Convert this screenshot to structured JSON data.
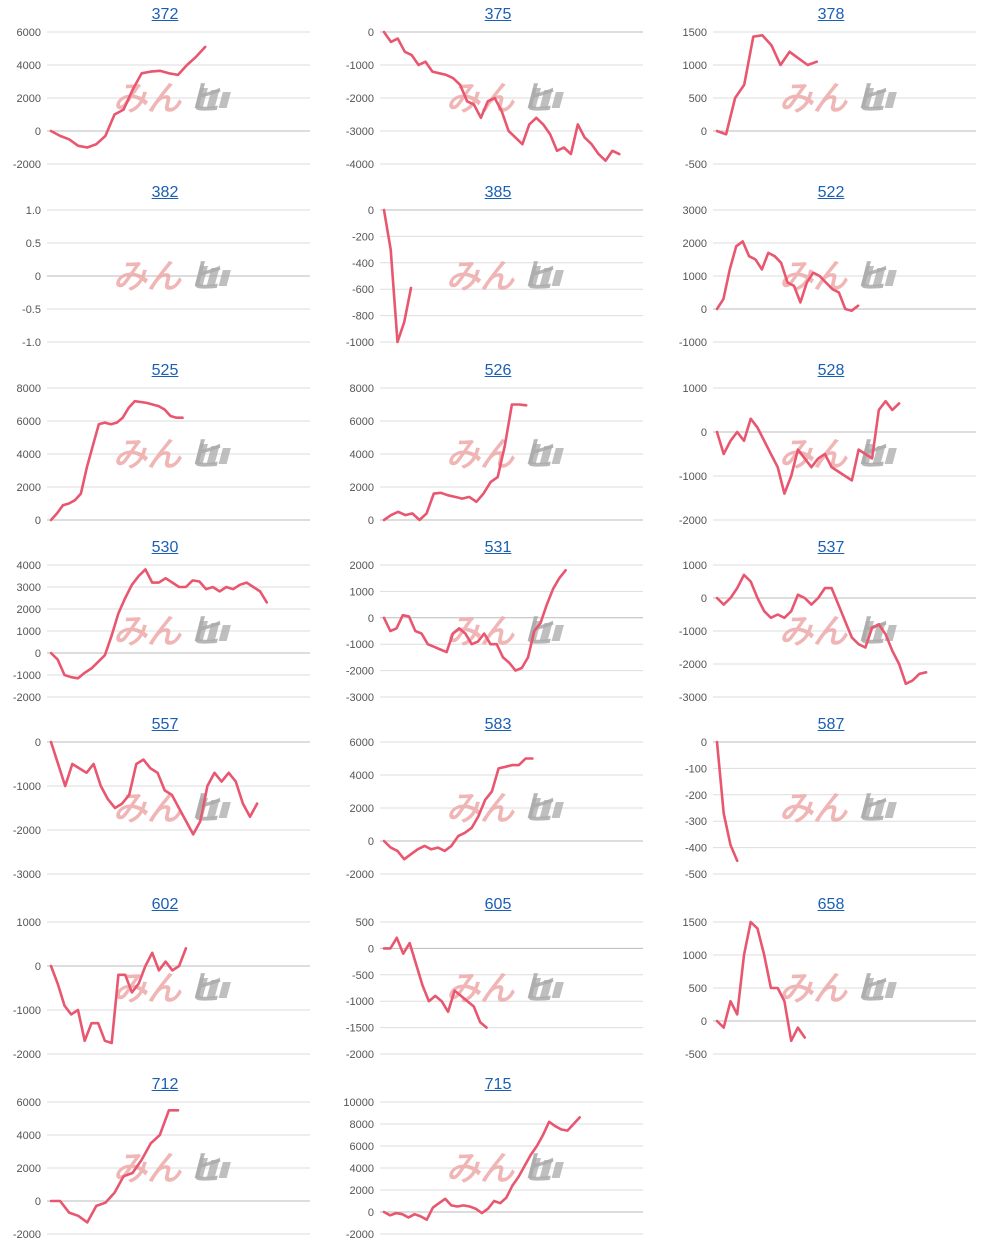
{
  "colors": {
    "line": "#e8566f",
    "grid": "#dddddd",
    "zero": "#bbbbbb",
    "title": "#1a5fb4",
    "wm_a": "#eeaaaa",
    "wm_b": "#aaaaaa"
  },
  "watermark": {
    "part_a": "みん",
    "part_b": "ヒ"
  },
  "chart_data": [
    {
      "type": "line",
      "title": "372",
      "ylim": [
        -2000,
        6000
      ],
      "yticks": [
        "6000",
        "4000",
        "2000",
        "0",
        "-2000"
      ],
      "n": 30,
      "values": [
        0,
        -300,
        -500,
        -900,
        -1000,
        -800,
        -300,
        1000,
        1300,
        2500,
        3500,
        3600,
        3650,
        3500,
        3400,
        4000,
        4500,
        5100
      ]
    },
    {
      "type": "line",
      "title": "375",
      "ylim": [
        -4000,
        0
      ],
      "yticks": [
        "0",
        "-1000",
        "-2000",
        "-3000",
        "-4000"
      ],
      "n": 39,
      "values": [
        0,
        -300,
        -200,
        -600,
        -700,
        -1000,
        -900,
        -1200,
        -1250,
        -1300,
        -1400,
        -1600,
        -2100,
        -2200,
        -2600,
        -2100,
        -2000,
        -2400,
        -3000,
        -3200,
        -3400,
        -2800,
        -2600,
        -2800,
        -3100,
        -3600,
        -3500,
        -3700,
        -2800,
        -3200,
        -3400,
        -3700,
        -3900,
        -3600,
        -3700
      ]
    },
    {
      "type": "line",
      "title": "378",
      "ylim": [
        -500,
        1500
      ],
      "yticks": [
        "1500",
        "1000",
        "500",
        "0",
        "-500"
      ],
      "n": 30,
      "values": [
        0,
        -50,
        500,
        700,
        1430,
        1450,
        1300,
        1000,
        1200,
        1100,
        1000,
        1050
      ]
    },
    {
      "type": "line",
      "title": "382",
      "ylim": [
        -1,
        1
      ],
      "yticks": [
        "1.0",
        "0.5",
        "0",
        "-0.5",
        "-1.0"
      ],
      "n": 30,
      "values": []
    },
    {
      "type": "line",
      "title": "385",
      "ylim": [
        -1000,
        0
      ],
      "yticks": [
        "0",
        "-200",
        "-400",
        "-600",
        "-800",
        "-1000"
      ],
      "n": 40,
      "values": [
        0,
        -300,
        -1000,
        -850,
        -590
      ]
    },
    {
      "type": "line",
      "title": "522",
      "ylim": [
        -1000,
        3000
      ],
      "yticks": [
        "3000",
        "2000",
        "1000",
        "0",
        "-1000"
      ],
      "n": 42,
      "values": [
        0,
        300,
        1200,
        1900,
        2050,
        1600,
        1500,
        1200,
        1700,
        1600,
        1400,
        800,
        700,
        200,
        800,
        1100,
        1000,
        800,
        600,
        500,
        0,
        -50,
        100
      ]
    },
    {
      "type": "line",
      "title": "525",
      "ylim": [
        0,
        8000
      ],
      "yticks": [
        "8000",
        "6000",
        "4000",
        "2000",
        "0"
      ],
      "n": 45,
      "values": [
        0,
        400,
        900,
        1000,
        1200,
        1600,
        3200,
        4500,
        5800,
        5900,
        5800,
        5900,
        6200,
        6800,
        7200,
        7150,
        7100,
        7000,
        6900,
        6700,
        6300,
        6200,
        6200
      ]
    },
    {
      "type": "line",
      "title": "526",
      "ylim": [
        0,
        8000
      ],
      "yticks": [
        "8000",
        "6000",
        "4000",
        "2000",
        "0"
      ],
      "n": 38,
      "values": [
        0,
        300,
        500,
        300,
        400,
        0,
        400,
        1600,
        1650,
        1500,
        1400,
        1300,
        1400,
        1100,
        1600,
        2300,
        2600,
        4500,
        7000,
        7000,
        6950
      ]
    },
    {
      "type": "line",
      "title": "528",
      "ylim": [
        -2000,
        1000
      ],
      "yticks": [
        "1000",
        "0",
        "-1000",
        "-2000"
      ],
      "n": 40,
      "values": [
        0,
        -500,
        -200,
        0,
        -200,
        300,
        100,
        -200,
        -500,
        -800,
        -1400,
        -1000,
        -400,
        -600,
        -800,
        -600,
        -500,
        -800,
        -900,
        -1000,
        -1100,
        -400,
        -500,
        -600,
        500,
        700,
        500,
        650
      ]
    },
    {
      "type": "line",
      "title": "530",
      "ylim": [
        -2000,
        4000
      ],
      "yticks": [
        "4000",
        "3000",
        "2000",
        "1000",
        "0",
        "-1000",
        "-2000"
      ],
      "n": 40,
      "values": [
        0,
        -300,
        -1000,
        -1100,
        -1150,
        -900,
        -700,
        -400,
        -100,
        800,
        1800,
        2500,
        3100,
        3500,
        3800,
        3200,
        3200,
        3400,
        3200,
        3000,
        3000,
        3300,
        3250,
        2900,
        3000,
        2800,
        3000,
        2900,
        3100,
        3200,
        3000,
        2800,
        2300
      ]
    },
    {
      "type": "line",
      "title": "531",
      "ylim": [
        -3000,
        2000
      ],
      "yticks": [
        "2000",
        "1000",
        "0",
        "-1000",
        "-2000",
        "-3000"
      ],
      "n": 43,
      "values": [
        0,
        -500,
        -400,
        100,
        50,
        -500,
        -600,
        -1000,
        -1100,
        -1200,
        -1300,
        -600,
        -400,
        -600,
        -1000,
        -900,
        -600,
        -1000,
        -1000,
        -1500,
        -1700,
        -2000,
        -1900,
        -1500,
        -500,
        -200,
        500,
        1100,
        1500,
        1800
      ]
    },
    {
      "type": "line",
      "title": "537",
      "ylim": [
        -3000,
        1000
      ],
      "yticks": [
        "1000",
        "0",
        "-1000",
        "-2000",
        "-3000"
      ],
      "n": 40,
      "values": [
        0,
        -200,
        0,
        300,
        700,
        500,
        0,
        -400,
        -600,
        -500,
        -600,
        -400,
        100,
        0,
        -200,
        0,
        300,
        300,
        -200,
        -700,
        -1200,
        -1400,
        -1500,
        -900,
        -800,
        -1100,
        -1600,
        -2000,
        -2600,
        -2500,
        -2300,
        -2250
      ]
    },
    {
      "type": "line",
      "title": "557",
      "ylim": [
        -3000,
        0
      ],
      "yticks": [
        "0",
        "-1000",
        "-2000",
        "-3000"
      ],
      "n": 38,
      "values": [
        0,
        -500,
        -1000,
        -500,
        -600,
        -700,
        -500,
        -1000,
        -1300,
        -1500,
        -1400,
        -1200,
        -500,
        -400,
        -600,
        -700,
        -1100,
        -1200,
        -1500,
        -1800,
        -2100,
        -1800,
        -1000,
        -700,
        -900,
        -700,
        -900,
        -1400,
        -1700,
        -1400
      ]
    },
    {
      "type": "line",
      "title": "583",
      "ylim": [
        -2000,
        6000
      ],
      "yticks": [
        "6000",
        "4000",
        "2000",
        "0",
        "-2000"
      ],
      "n": 40,
      "values": [
        0,
        -400,
        -600,
        -1100,
        -800,
        -500,
        -300,
        -500,
        -400,
        -600,
        -300,
        300,
        500,
        800,
        1500,
        2500,
        3000,
        4400,
        4500,
        4600,
        4600,
        5000,
        5000
      ]
    },
    {
      "type": "line",
      "title": "587",
      "ylim": [
        -500,
        0
      ],
      "yticks": [
        "0",
        "-100",
        "-200",
        "-300",
        "-400",
        "-500"
      ],
      "n": 40,
      "values": [
        0,
        -270,
        -390,
        -450
      ]
    },
    {
      "type": "line",
      "title": "602",
      "ylim": [
        -2000,
        1000
      ],
      "yticks": [
        "1000",
        "0",
        "-1000",
        "-2000"
      ],
      "n": 40,
      "values": [
        0,
        -400,
        -900,
        -1100,
        -1000,
        -1700,
        -1300,
        -1300,
        -1700,
        -1750,
        -200,
        -200,
        -600,
        -400,
        0,
        300,
        -100,
        100,
        -100,
        0,
        400
      ]
    },
    {
      "type": "line",
      "title": "605",
      "ylim": [
        -2000,
        500
      ],
      "yticks": [
        "500",
        "0",
        "-500",
        "-1000",
        "-1500",
        "-2000"
      ],
      "n": 42,
      "values": [
        0,
        0,
        200,
        -100,
        100,
        -300,
        -700,
        -1000,
        -900,
        -1000,
        -1200,
        -800,
        -900,
        -1000,
        -1100,
        -1400,
        -1500
      ]
    },
    {
      "type": "line",
      "title": "658",
      "ylim": [
        -500,
        1500
      ],
      "yticks": [
        "1500",
        "1000",
        "500",
        "0",
        "-500"
      ],
      "n": 40,
      "values": [
        0,
        -100,
        300,
        100,
        1000,
        1500,
        1400,
        1000,
        500,
        500,
        300,
        -300,
        -100,
        -250
      ]
    },
    {
      "type": "line",
      "title": "712",
      "ylim": [
        -2000,
        6000
      ],
      "yticks": [
        "6000",
        "4000",
        "2000",
        "0",
        "-2000"
      ],
      "n": 30,
      "values": [
        0,
        0,
        -700,
        -900,
        -1300,
        -300,
        -100,
        500,
        1500,
        1700,
        2500,
        3500,
        4000,
        5500,
        5500
      ]
    },
    {
      "type": "line",
      "title": "715",
      "ylim": [
        -2000,
        10000
      ],
      "yticks": [
        "10000",
        "8000",
        "6000",
        "4000",
        "2000",
        "0",
        "-2000"
      ],
      "n": 44,
      "values": [
        0,
        -300,
        -100,
        -200,
        -500,
        -200,
        -400,
        -700,
        400,
        800,
        1200,
        600,
        500,
        600,
        500,
        300,
        -100,
        300,
        1000,
        800,
        1300,
        2400,
        3200,
        4200,
        5200,
        6000,
        7000,
        8200,
        7800,
        7500,
        7400,
        8000,
        8600
      ]
    }
  ]
}
